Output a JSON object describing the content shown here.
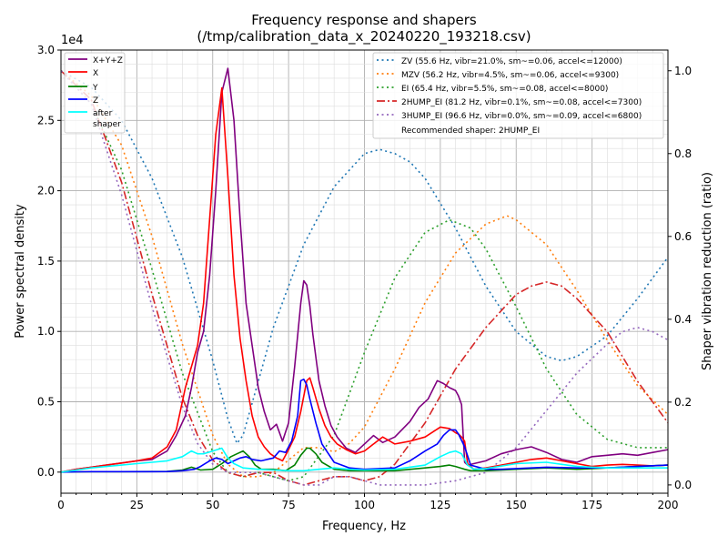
{
  "chart_data": {
    "type": "line",
    "title": "Frequency response and shapers",
    "subtitle": "(/tmp/calibration_data_x_20240220_193218.csv)",
    "xlabel": "Frequency, Hz",
    "ylabel": "Power spectral density",
    "y2label": "Shaper vibration reduction (ratio)",
    "y_offset_text": "1e4",
    "xlim": [
      0,
      200
    ],
    "ylim": [
      -1500,
      30000
    ],
    "y2lim": [
      -0.02,
      1.05
    ],
    "x_ticks": [
      "0",
      "25",
      "50",
      "75",
      "100",
      "125",
      "150",
      "175",
      "200"
    ],
    "x_tick_values": [
      0,
      25,
      50,
      75,
      100,
      125,
      150,
      175,
      200
    ],
    "y_ticks": [
      "0.0",
      "0.5",
      "1.0",
      "1.5",
      "2.0",
      "2.5",
      "3.0"
    ],
    "y_tick_values": [
      0,
      5000,
      10000,
      15000,
      20000,
      25000,
      30000
    ],
    "y2_ticks": [
      "0.0",
      "0.2",
      "0.4",
      "0.6",
      "0.8",
      "1.0"
    ],
    "y2_tick_values": [
      0,
      0.2,
      0.4,
      0.6,
      0.8,
      1.0
    ],
    "grid": true,
    "legend_left_position": "top-left",
    "legend_right_position": "top-right",
    "psd_series": [
      {
        "name": "X+Y+Z",
        "color": "#800080",
        "dash": "solid",
        "x": [
          0,
          5,
          10,
          15,
          20,
          25,
          30,
          35,
          38,
          41,
          43,
          45,
          47,
          49,
          51,
          53,
          55,
          57,
          59,
          61,
          63,
          65,
          67,
          69,
          71,
          73,
          75,
          77,
          79,
          80,
          81,
          82,
          83,
          85,
          87,
          89,
          91,
          94,
          97,
          100,
          103,
          106,
          110,
          115,
          118,
          121,
          124,
          126,
          128,
          130,
          131,
          132,
          133,
          134,
          136,
          140,
          145,
          150,
          155,
          160,
          165,
          170,
          175,
          180,
          185,
          190,
          195,
          200
        ],
        "y": [
          0,
          200,
          350,
          500,
          650,
          800,
          900,
          1500,
          2600,
          4000,
          6000,
          8500,
          10000,
          14000,
          20000,
          27000,
          28700,
          25000,
          18000,
          12000,
          9000,
          6000,
          4300,
          3000,
          3400,
          2200,
          3500,
          7500,
          12000,
          13600,
          13300,
          11800,
          9800,
          6500,
          4700,
          3300,
          2500,
          1700,
          1400,
          2000,
          2600,
          2100,
          2500,
          3600,
          4600,
          5200,
          6500,
          6300,
          6000,
          5800,
          5400,
          4800,
          700,
          500,
          600,
          800,
          1300,
          1600,
          1800,
          1400,
          900,
          700,
          1100,
          1200,
          1300,
          1200,
          1400,
          1600
        ]
      },
      {
        "name": "X",
        "color": "#ff0000",
        "dash": "solid",
        "x": [
          0,
          5,
          10,
          15,
          20,
          25,
          30,
          35,
          38,
          41,
          43,
          45,
          47,
          49,
          51,
          53,
          55,
          57,
          59,
          61,
          63,
          65,
          67,
          69,
          71,
          73,
          75,
          77,
          79,
          81,
          82,
          83,
          85,
          87,
          89,
          91,
          94,
          97,
          100,
          103,
          106,
          110,
          115,
          120,
          125,
          128,
          130,
          131,
          132,
          133,
          134,
          136,
          140,
          145,
          150,
          155,
          160,
          165,
          170,
          175,
          180,
          185,
          190,
          195,
          200
        ],
        "y": [
          0,
          200,
          350,
          500,
          650,
          800,
          1000,
          1800,
          3000,
          6000,
          7500,
          9000,
          12000,
          18000,
          24000,
          27300,
          21000,
          14000,
          9500,
          6500,
          4000,
          2500,
          1800,
          1300,
          1000,
          800,
          1600,
          2500,
          4300,
          6500,
          6700,
          6000,
          4500,
          3300,
          2500,
          2000,
          1600,
          1300,
          1500,
          2000,
          2500,
          2000,
          2200,
          2500,
          3200,
          3100,
          2800,
          2700,
          2500,
          2200,
          600,
          200,
          300,
          500,
          700,
          900,
          1000,
          800,
          600,
          400,
          500,
          550,
          500,
          450,
          500
        ]
      },
      {
        "name": "Y",
        "color": "#008000",
        "dash": "solid",
        "x": [
          0,
          5,
          10,
          20,
          30,
          35,
          40,
          43,
          46,
          50,
          53,
          56,
          58,
          60,
          62,
          64,
          66,
          70,
          74,
          77,
          79,
          81,
          82,
          84,
          86,
          90,
          95,
          100,
          110,
          120,
          125,
          128,
          130,
          133,
          135,
          140,
          150,
          160,
          170,
          180,
          190,
          200
        ],
        "y": [
          0,
          20,
          30,
          30,
          40,
          50,
          150,
          350,
          150,
          200,
          600,
          1100,
          1300,
          1500,
          1100,
          500,
          200,
          200,
          100,
          500,
          1200,
          1700,
          1700,
          1300,
          700,
          200,
          100,
          100,
          100,
          300,
          400,
          500,
          400,
          200,
          100,
          100,
          200,
          300,
          200,
          300,
          400,
          500
        ]
      },
      {
        "name": "Z",
        "color": "#0000ff",
        "dash": "solid",
        "x": [
          0,
          5,
          10,
          20,
          30,
          35,
          40,
          44,
          46,
          49,
          51,
          53,
          55,
          57,
          59,
          61,
          63,
          66,
          70,
          72,
          74,
          76,
          78,
          79,
          80,
          81,
          82,
          84,
          86,
          90,
          95,
          100,
          110,
          115,
          120,
          124,
          126,
          128,
          130,
          131,
          133,
          135,
          140,
          145,
          150,
          155,
          160,
          170,
          180,
          190,
          200
        ],
        "y": [
          0,
          20,
          30,
          30,
          30,
          40,
          100,
          200,
          400,
          800,
          1000,
          900,
          600,
          800,
          1000,
          1100,
          900,
          800,
          1000,
          1500,
          1400,
          2200,
          4000,
          6500,
          6600,
          6200,
          5200,
          3500,
          2000,
          700,
          300,
          200,
          300,
          800,
          1500,
          2000,
          2600,
          3000,
          3000,
          2700,
          1800,
          500,
          200,
          200,
          250,
          300,
          350,
          300,
          300,
          400,
          500
        ]
      },
      {
        "name": "after\nshaper",
        "color": "#00ffff",
        "dash": "solid",
        "x": [
          0,
          5,
          10,
          15,
          20,
          25,
          30,
          35,
          40,
          43,
          45,
          47,
          50,
          53,
          55,
          57,
          60,
          65,
          70,
          75,
          80,
          85,
          90,
          95,
          100,
          110,
          120,
          125,
          128,
          130,
          132,
          134,
          136,
          140,
          150,
          160,
          170,
          180,
          190,
          200
        ],
        "y": [
          0,
          150,
          300,
          400,
          500,
          600,
          700,
          800,
          1100,
          1500,
          1300,
          1300,
          1500,
          1700,
          1000,
          600,
          300,
          200,
          150,
          100,
          100,
          200,
          300,
          200,
          150,
          200,
          500,
          1100,
          1400,
          1500,
          1300,
          500,
          200,
          250,
          600,
          700,
          400,
          300,
          300,
          300
        ]
      }
    ],
    "shaper_series": [
      {
        "name": "ZV (55.6 Hz, vibr=21.0%, sm~=0.06, accel<=12000)",
        "color": "#1f77b4",
        "dash": "dotted",
        "x": [
          0,
          10,
          20,
          30,
          40,
          50,
          55,
          58,
          60,
          65,
          70,
          80,
          90,
          100,
          105,
          110,
          115,
          120,
          130,
          140,
          150,
          160,
          165,
          170,
          180,
          190,
          200
        ],
        "y": [
          1.0,
          0.96,
          0.88,
          0.74,
          0.55,
          0.3,
          0.16,
          0.1,
          0.12,
          0.25,
          0.38,
          0.58,
          0.72,
          0.8,
          0.81,
          0.8,
          0.78,
          0.74,
          0.62,
          0.48,
          0.37,
          0.31,
          0.3,
          0.31,
          0.36,
          0.45,
          0.55
        ]
      },
      {
        "name": "MZV (56.2 Hz, vibr=4.5%, sm~=0.06, accel<=9300)",
        "color": "#ff7f0e",
        "dash": "dotted",
        "x": [
          0,
          10,
          20,
          30,
          40,
          50,
          55,
          60,
          65,
          70,
          75,
          80,
          85,
          90,
          95,
          100,
          110,
          120,
          130,
          140,
          147,
          150,
          160,
          170,
          180,
          190,
          200
        ],
        "y": [
          1.0,
          0.94,
          0.82,
          0.6,
          0.34,
          0.12,
          0.05,
          0.02,
          0.02,
          0.03,
          0.06,
          0.09,
          0.09,
          0.08,
          0.1,
          0.14,
          0.28,
          0.44,
          0.56,
          0.63,
          0.65,
          0.64,
          0.58,
          0.47,
          0.35,
          0.24,
          0.17
        ]
      },
      {
        "name": "EI (65.4 Hz, vibr=5.5%, sm~=0.08, accel<=8000)",
        "color": "#2ca02c",
        "dash": "dotted",
        "x": [
          0,
          10,
          20,
          30,
          40,
          50,
          55,
          60,
          65,
          70,
          75,
          80,
          90,
          100,
          110,
          120,
          128,
          135,
          140,
          150,
          160,
          170,
          180,
          190,
          200
        ],
        "y": [
          1.0,
          0.92,
          0.76,
          0.52,
          0.27,
          0.08,
          0.03,
          0.02,
          0.03,
          0.02,
          0.01,
          0.02,
          0.12,
          0.32,
          0.5,
          0.61,
          0.64,
          0.62,
          0.57,
          0.43,
          0.28,
          0.17,
          0.11,
          0.09,
          0.09
        ]
      },
      {
        "name": "2HUMP_EI (81.2 Hz, vibr=0.1%, sm~=0.08, accel<=7300)",
        "color": "#d62728",
        "dash": "dashdot",
        "x": [
          0,
          10,
          20,
          30,
          40,
          45,
          50,
          55,
          60,
          65,
          70,
          75,
          80,
          85,
          90,
          95,
          100,
          105,
          110,
          120,
          130,
          140,
          150,
          155,
          160,
          165,
          170,
          180,
          190,
          200
        ],
        "y": [
          1.0,
          0.93,
          0.73,
          0.46,
          0.21,
          0.12,
          0.06,
          0.03,
          0.02,
          0.03,
          0.03,
          0.01,
          0.0,
          0.01,
          0.02,
          0.02,
          0.01,
          0.02,
          0.05,
          0.15,
          0.28,
          0.38,
          0.46,
          0.48,
          0.49,
          0.48,
          0.45,
          0.37,
          0.25,
          0.15
        ]
      },
      {
        "name": "3HUMP_EI (96.6 Hz, vibr=0.0%, sm~=0.09, accel<=6800)",
        "color": "#9467bd",
        "dash": "dotted",
        "x": [
          0,
          10,
          20,
          30,
          40,
          45,
          50,
          55,
          60,
          65,
          70,
          75,
          80,
          85,
          90,
          95,
          100,
          105,
          110,
          120,
          130,
          140,
          150,
          160,
          170,
          180,
          185,
          190,
          195,
          200
        ],
        "y": [
          1.0,
          0.92,
          0.7,
          0.43,
          0.19,
          0.1,
          0.05,
          0.03,
          0.03,
          0.03,
          0.02,
          0.01,
          0.0,
          0.0,
          0.02,
          0.02,
          0.01,
          0.0,
          0.0,
          0.0,
          0.01,
          0.03,
          0.09,
          0.18,
          0.27,
          0.34,
          0.37,
          0.38,
          0.37,
          0.35
        ]
      }
    ],
    "recommended_text": "Recommended shaper: 2HUMP_EI"
  }
}
